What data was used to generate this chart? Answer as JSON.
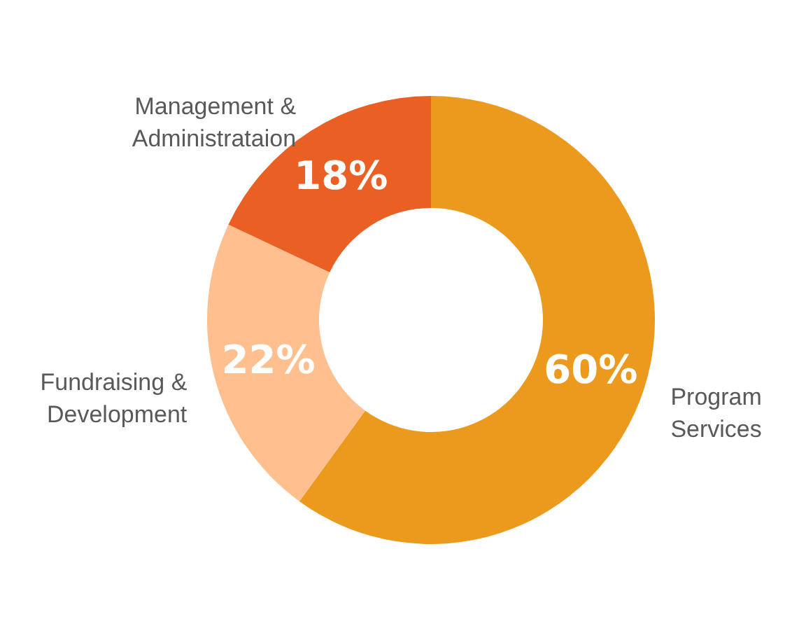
{
  "chart_data": {
    "type": "donut",
    "categories": [
      "Program Services",
      "Fundraising & Development",
      "Management & Administrataion"
    ],
    "values": [
      60,
      22,
      18
    ],
    "value_labels": [
      "60%",
      "22%",
      "18%"
    ],
    "colors": [
      "#ec9a1e",
      "#ffbf8f",
      "#ea5f24"
    ]
  }
}
